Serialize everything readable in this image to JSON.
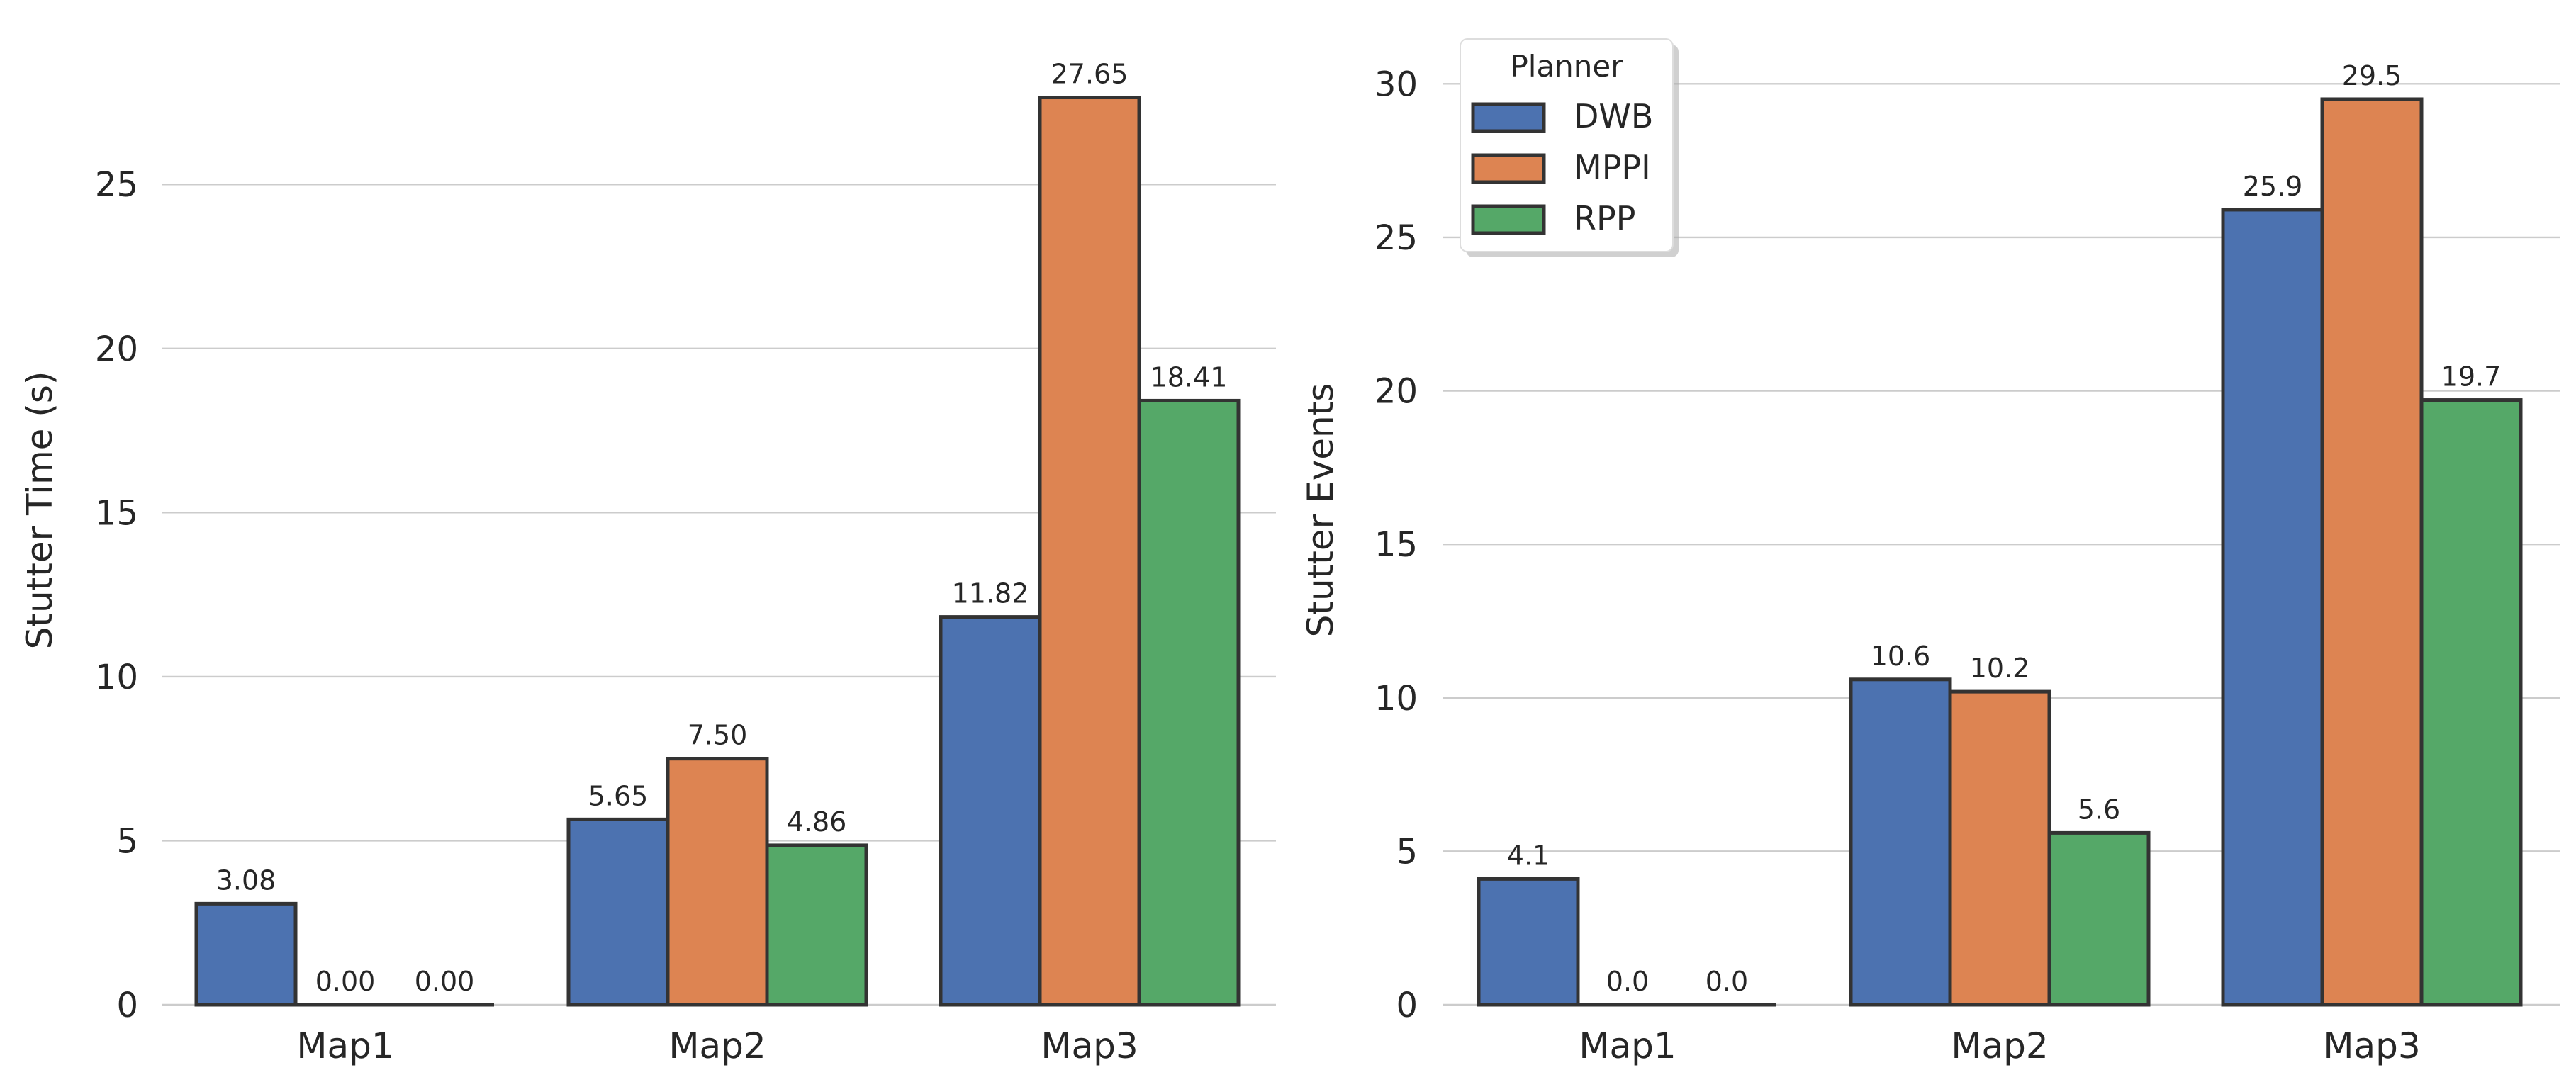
{
  "chart_data": [
    {
      "type": "bar",
      "categories": [
        "Map1",
        "Map2",
        "Map3"
      ],
      "ylabel": "Stutter Time (s)",
      "xlabel": "",
      "ylim": [
        0,
        29.0
      ],
      "yticks": [
        0,
        5,
        10,
        15,
        20,
        25
      ],
      "grid": true,
      "series": [
        {
          "name": "DWB",
          "color": "#4c72b0",
          "values": [
            3.08,
            5.65,
            11.82
          ],
          "labels": [
            "3.08",
            "5.65",
            "11.82"
          ]
        },
        {
          "name": "MPPI",
          "color": "#dd8452",
          "values": [
            0.0,
            7.5,
            27.65
          ],
          "labels": [
            "0.00",
            "7.50",
            "27.65"
          ]
        },
        {
          "name": "RPP",
          "color": "#55a868",
          "values": [
            0.0,
            4.86,
            18.41
          ],
          "labels": [
            "0.00",
            "4.86",
            "18.41"
          ]
        }
      ]
    },
    {
      "type": "bar",
      "categories": [
        "Map1",
        "Map2",
        "Map3"
      ],
      "ylabel": "Stutter Events",
      "xlabel": "",
      "ylim": [
        0,
        31.0
      ],
      "yticks": [
        0,
        5,
        10,
        15,
        20,
        25,
        30
      ],
      "grid": true,
      "legend": {
        "title": "Planner",
        "position": "top-left"
      },
      "series": [
        {
          "name": "DWB",
          "color": "#4c72b0",
          "values": [
            4.1,
            10.6,
            25.9
          ],
          "labels": [
            "4.1",
            "10.6",
            "25.9"
          ]
        },
        {
          "name": "MPPI",
          "color": "#dd8452",
          "values": [
            0.0,
            10.2,
            29.5
          ],
          "labels": [
            "0.0",
            "10.2",
            "29.5"
          ]
        },
        {
          "name": "RPP",
          "color": "#55a868",
          "values": [
            0.0,
            5.6,
            19.7
          ],
          "labels": [
            "0.0",
            "5.6",
            "19.7"
          ]
        }
      ]
    }
  ]
}
